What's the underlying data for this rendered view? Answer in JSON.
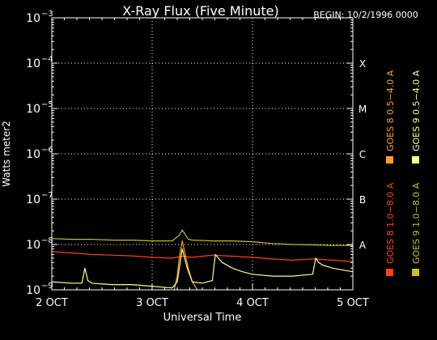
{
  "chart_data": {
    "type": "line",
    "title": "X-Ray Flux (Five Minute)",
    "begin_label": "BEGIN: 10/2/1996 0000",
    "ylabel": "Watts meter2",
    "xlabel": "Universal Time",
    "y_scale": "log",
    "ylim": [
      1e-09,
      0.001
    ],
    "y_ticks": [
      {
        "value": 0.001,
        "mantissa": "10",
        "exponent": "−3"
      },
      {
        "value": 0.0001,
        "mantissa": "10",
        "exponent": "−4"
      },
      {
        "value": 1e-05,
        "mantissa": "10",
        "exponent": "−5"
      },
      {
        "value": 1e-06,
        "mantissa": "10",
        "exponent": "−6"
      },
      {
        "value": 1e-07,
        "mantissa": "10",
        "exponent": "−7"
      },
      {
        "value": 1e-08,
        "mantissa": "10",
        "exponent": "−8"
      },
      {
        "value": 1e-09,
        "mantissa": "10",
        "exponent": "−9"
      }
    ],
    "xlim": [
      0,
      3
    ],
    "x_ticks": [
      {
        "value": 0,
        "label": "2 OCT"
      },
      {
        "value": 1,
        "label": "3 OCT"
      },
      {
        "value": 2,
        "label": "4 OCT"
      },
      {
        "value": 3,
        "label": "5 OCT"
      }
    ],
    "flare_classes": [
      {
        "label": "X",
        "value": 0.0001
      },
      {
        "label": "M",
        "value": 1e-05
      },
      {
        "label": "C",
        "value": 1e-06
      },
      {
        "label": "B",
        "value": 1e-07
      },
      {
        "label": "A",
        "value": 1e-08
      }
    ],
    "grid": true,
    "legend": [
      {
        "label": "GOES 8 1.0−8.0 A",
        "color": "#ff4010"
      },
      {
        "label": "GOES 8 0.5−4.0 A",
        "color": "#ffa020"
      },
      {
        "label": "GOES 9 1.0−8.0 A",
        "color": "#c8c020"
      },
      {
        "label": "GOES 9 0.5−4.0 A",
        "color": "#ffff80"
      }
    ],
    "series": [
      {
        "name": "GOES 8 1.0−8.0 A",
        "color": "#ff4010",
        "x": [
          0,
          0.2,
          0.4,
          0.6,
          0.8,
          1.0,
          1.2,
          1.3,
          1.4,
          1.6,
          1.8,
          2.0,
          2.2,
          2.4,
          2.6,
          2.8,
          3.0
        ],
        "y": [
          7e-09,
          6.5e-09,
          6e-09,
          5.8e-09,
          5.6e-09,
          5.2e-09,
          5e-09,
          5.5e-09,
          5.2e-09,
          5.8e-09,
          5.5e-09,
          5.2e-09,
          4.8e-09,
          4.5e-09,
          4.8e-09,
          4.5e-09,
          4.2e-09
        ]
      },
      {
        "name": "GOES 8 0.5−4.0 A",
        "color": "#ffa020",
        "x": [
          1.22,
          1.25,
          1.27,
          1.3,
          1.33,
          1.36,
          1.4,
          1.45
        ],
        "y": [
          1e-09,
          2e-09,
          5e-09,
          1.2e-08,
          6e-09,
          3e-09,
          1.5e-09,
          1e-09
        ]
      },
      {
        "name": "GOES 9 1.0−8.0 A",
        "color": "#c8c020",
        "x": [
          0,
          0.2,
          0.4,
          0.6,
          0.8,
          1.0,
          1.2,
          1.27,
          1.3,
          1.36,
          1.4,
          1.6,
          1.8,
          2.0,
          2.2,
          2.4,
          2.6,
          2.8,
          3.0
        ],
        "y": [
          1.35e-08,
          1.3e-08,
          1.3e-08,
          1.25e-08,
          1.25e-08,
          1.2e-08,
          1.2e-08,
          1.6e-08,
          2.1e-08,
          1.3e-08,
          1.25e-08,
          1.2e-08,
          1.2e-08,
          1.15e-08,
          1.05e-08,
          1e-08,
          9.8e-09,
          9.5e-09,
          9.5e-09
        ]
      },
      {
        "name": "GOES 9 0.5−4.0 A",
        "color": "#ffff80",
        "x": [
          0,
          0.2,
          0.3,
          0.33,
          0.36,
          0.4,
          0.6,
          0.8,
          1.0,
          1.2,
          1.25,
          1.3,
          1.35,
          1.4,
          1.5,
          1.6,
          1.63,
          1.66,
          1.7,
          1.8,
          1.9,
          2.0,
          2.2,
          2.4,
          2.6,
          2.63,
          2.66,
          2.7,
          2.8,
          3.0
        ],
        "y": [
          1.5e-09,
          1.4e-09,
          1.4e-09,
          3e-09,
          1.6e-09,
          1.4e-09,
          1.3e-09,
          1.3e-09,
          1.2e-09,
          1.1e-09,
          1.5e-09,
          8e-09,
          3e-09,
          1.5e-09,
          1.4e-09,
          1.6e-09,
          6e-09,
          5e-09,
          4e-09,
          3e-09,
          2.5e-09,
          2.2e-09,
          2e-09,
          2e-09,
          2.2e-09,
          5e-09,
          4e-09,
          3.5e-09,
          3e-09,
          2.5e-09
        ]
      }
    ]
  }
}
